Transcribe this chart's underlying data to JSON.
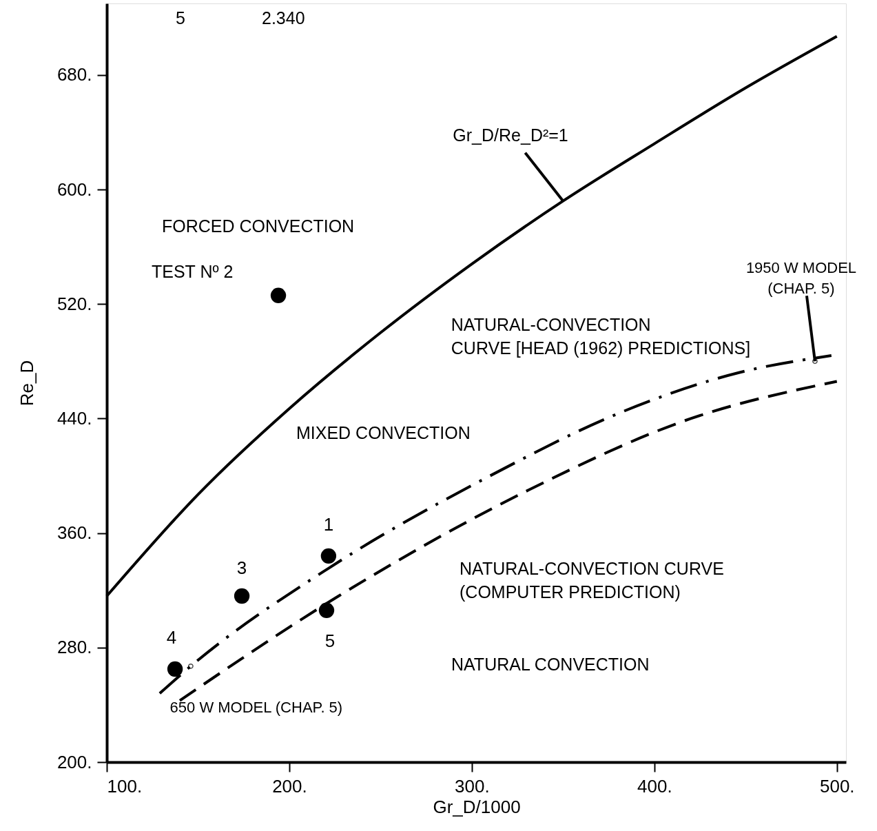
{
  "chart_data": {
    "type": "line",
    "xlabel": "Gr_D/1000",
    "ylabel": "Re_D",
    "xlim": [
      100,
      505
    ],
    "ylim": [
      200,
      730
    ],
    "xticks": [
      {
        "value": 100,
        "label": "100."
      },
      {
        "value": 200,
        "label": "200."
      },
      {
        "value": 300,
        "label": "300."
      },
      {
        "value": 400,
        "label": "400."
      },
      {
        "value": 500,
        "label": "500."
      }
    ],
    "yticks": [
      {
        "value": 200,
        "label": "200."
      },
      {
        "value": 280,
        "label": "280."
      },
      {
        "value": 360,
        "label": "360."
      },
      {
        "value": 440,
        "label": "440."
      },
      {
        "value": 520,
        "label": "520."
      },
      {
        "value": 600,
        "label": "600."
      },
      {
        "value": 680,
        "label": "680."
      }
    ],
    "grid": false,
    "series": [
      {
        "name": "Gr_D/Re_D²=1",
        "line_style": "solid",
        "color": "#000000",
        "x": [
          100,
          150,
          200,
          250,
          300,
          350,
          400,
          450,
          500
        ],
        "values": [
          316,
          387,
          447,
          500,
          548,
          592,
          632,
          671,
          707
        ]
      },
      {
        "name": "NATURAL-CONVECTION CURVE [HEAD (1962) PREDICTIONS]",
        "line_style": "dashdot",
        "color": "#000000",
        "x": [
          129,
          146,
          221,
          310,
          383,
          446,
          497
        ],
        "values": [
          248,
          267,
          335,
          400,
          445,
          472,
          484
        ]
      },
      {
        "name": "NATURAL-CONVECTION CURVE (COMPUTER PREDICTION)",
        "line_style": "dashed",
        "color": "#000000",
        "x": [
          140,
          227,
          331,
          420,
          500
        ],
        "values": [
          243,
          316,
          390,
          440,
          466
        ]
      },
      {
        "type": "scatter",
        "marker": "circle",
        "color": "#000000",
        "x": [
          221.5,
          194,
          174,
          137.4,
          220.4
        ],
        "values": [
          344,
          526,
          316,
          265,
          306
        ]
      }
    ],
    "annotations": [
      {
        "text": "1",
        "x": 221.5,
        "y": 344
      },
      "TEST Nº 2",
      {
        "text": "3",
        "x": 174,
        "y": 316
      },
      {
        "text": "4",
        "x": 137.4,
        "y": 265
      },
      {
        "text": "5",
        "x": 220.4,
        "y": 306
      },
      {
        "text": "650 W MODEL (CHAP. 5)",
        "x": 146,
        "y": 267
      },
      {
        "text": "1950 W MODEL (CHAP. 5)",
        "x": 488,
        "y": 480
      },
      "FORCED CONVECTION",
      "MIXED CONVECTION",
      "NATURAL CONVECTION",
      "5",
      "2.340"
    ]
  }
}
